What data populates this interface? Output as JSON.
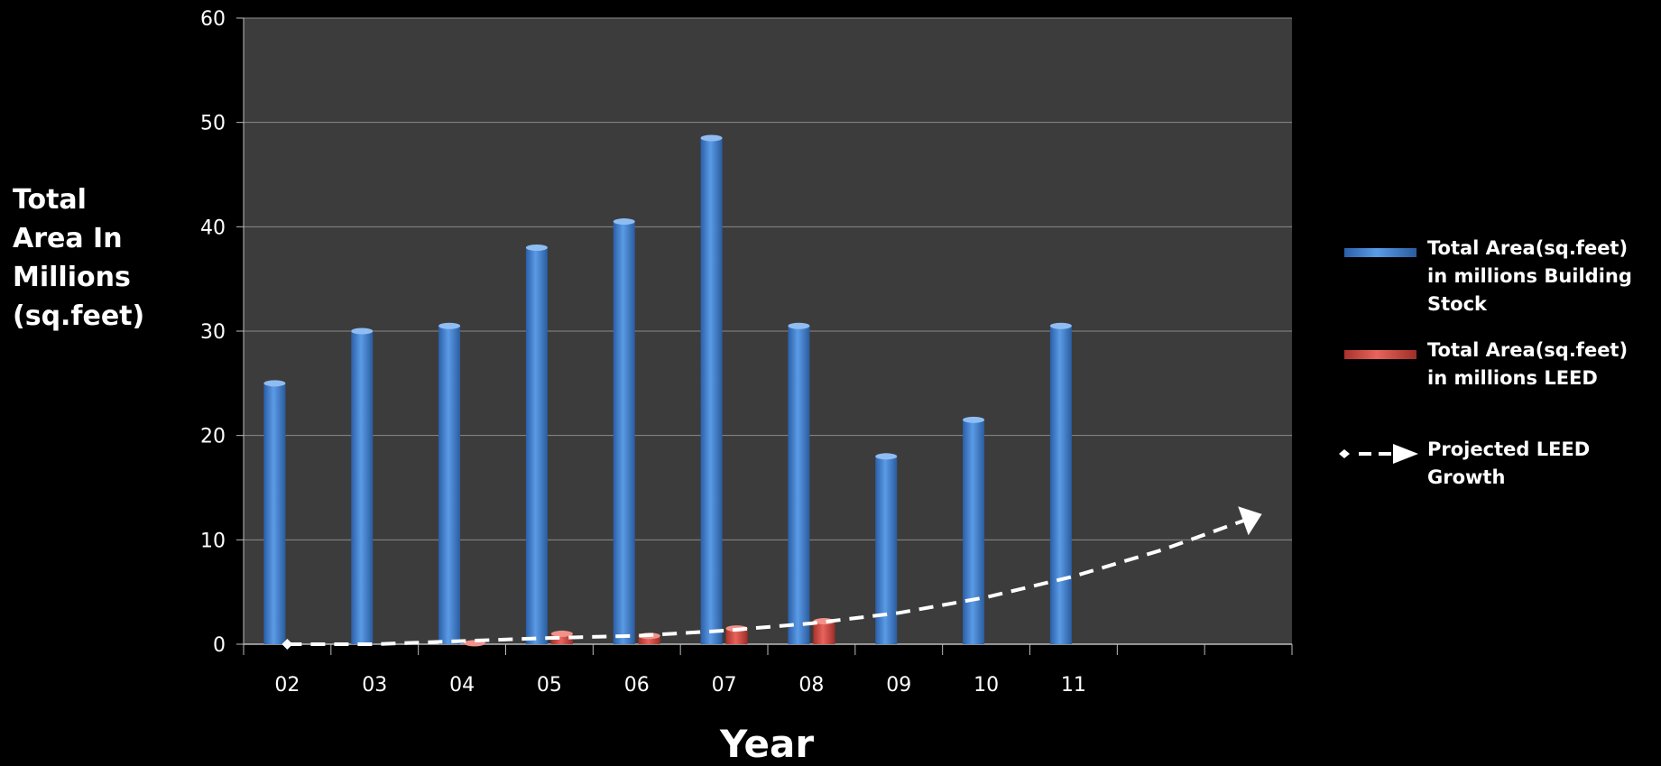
{
  "chart_data": {
    "type": "bar",
    "title": "",
    "xlabel": "Year",
    "ylabel_lines": [
      "Total",
      "Area In",
      "Millions",
      "(sq.feet)"
    ],
    "ylim": [
      0,
      60
    ],
    "yticks": [
      0,
      10,
      20,
      30,
      40,
      50,
      60
    ],
    "categories": [
      "02",
      "03",
      "04",
      "05",
      "06",
      "07",
      "08",
      "09",
      "10",
      "11",
      "",
      ""
    ],
    "series": [
      {
        "name": "Total Area(sq.feet) in millions Building Stock",
        "legend_lines": [
          "Total Area(sq.feet)",
          "in millions Building",
          "Stock"
        ],
        "color": "#3f7fd0",
        "values": [
          25,
          30,
          30.5,
          38,
          40.5,
          48.5,
          30.5,
          18,
          21.5,
          30.5,
          null,
          null
        ]
      },
      {
        "name": "Total Area(sq.feet) in millions LEED",
        "legend_lines": [
          "Total Area(sq.feet)",
          "in millions LEED"
        ],
        "color": "#d9463f",
        "values": [
          0,
          0,
          0.1,
          1,
          0.8,
          1.5,
          2.2,
          0,
          0,
          0,
          null,
          null
        ]
      },
      {
        "name": "Projected LEED Growth",
        "legend_lines": [
          "Projected LEED",
          "Growth"
        ],
        "type": "line",
        "style": "dashed",
        "color": "#ffffff",
        "x_index": [
          0,
          1,
          2,
          3,
          4,
          5,
          6,
          7,
          8,
          9,
          10,
          11
        ],
        "values": [
          0,
          0,
          0.3,
          0.6,
          0.8,
          1.3,
          2.0,
          3.0,
          4.5,
          6.5,
          9.0,
          12.0
        ]
      }
    ],
    "background": "#3c3c3c",
    "grid": true,
    "legend_position": "right"
  }
}
